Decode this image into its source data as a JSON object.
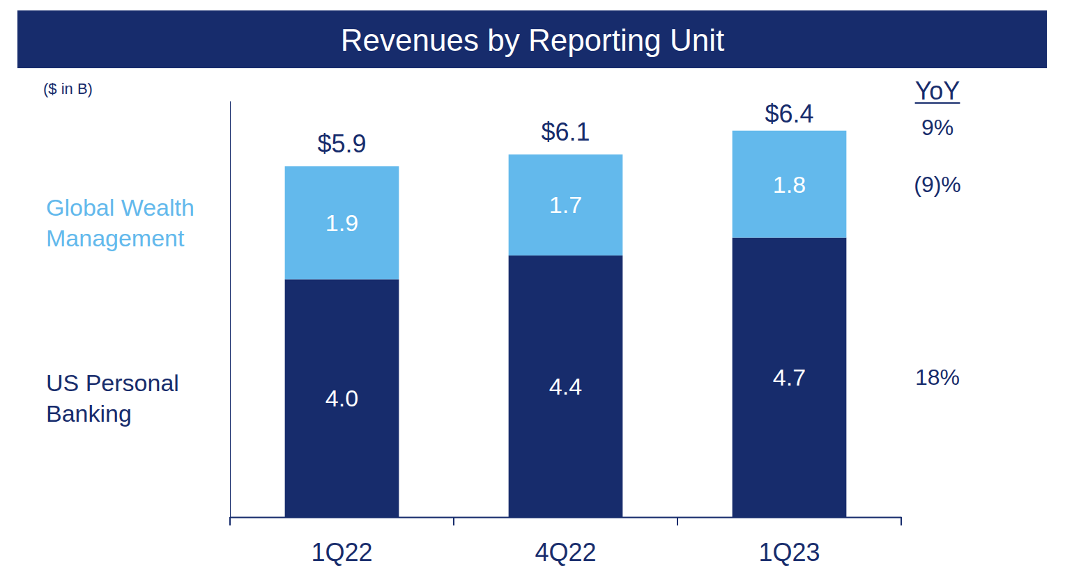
{
  "chart_data": {
    "type": "bar",
    "title": "Revenues by Reporting Unit",
    "subtitle": "($ in B)",
    "categories": [
      "1Q22",
      "4Q22",
      "1Q23"
    ],
    "series": [
      {
        "name": "US Personal Banking",
        "color": "#172c6c",
        "values": [
          4.0,
          4.4,
          4.7
        ],
        "value_labels": [
          "4.0",
          "4.4",
          "4.7"
        ],
        "yoy": 18,
        "yoy_label": "18%"
      },
      {
        "name": "Global Wealth Management",
        "color": "#63b9ec",
        "values": [
          1.9,
          1.7,
          1.8
        ],
        "yoy": -9,
        "yoy_label": "(9)%"
      }
    ],
    "totals": {
      "values": [
        5.9,
        6.1,
        6.4
      ],
      "value_labels": [
        "$5.9",
        "$6.1",
        "$6.4"
      ],
      "yoy": 9,
      "yoy_label": "9%"
    },
    "yoy_title": "YoY",
    "stacked": true,
    "data_labels": true,
    "tick_labels": "x",
    "grid": false,
    "ylim": [
      0,
      7
    ],
    "yticks": []
  }
}
